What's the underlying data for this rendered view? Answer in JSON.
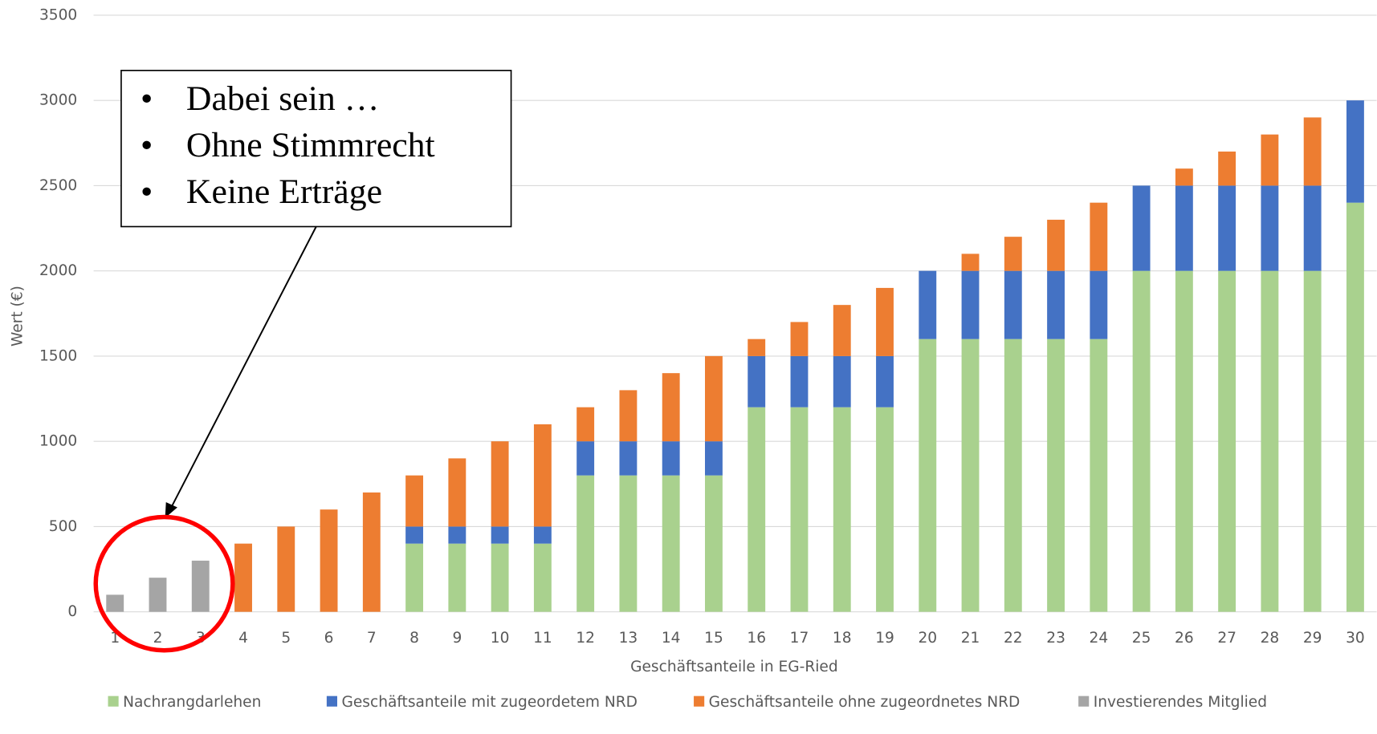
{
  "chart_data": {
    "type": "stacked_bar",
    "x_label": "Geschäftsanteile in EG-Ried",
    "y_label": "Wert (€)",
    "categories": [
      "1",
      "2",
      "3",
      "4",
      "5",
      "6",
      "7",
      "8",
      "9",
      "10",
      "11",
      "12",
      "13",
      "14",
      "15",
      "16",
      "17",
      "18",
      "19",
      "20",
      "21",
      "22",
      "23",
      "24",
      "25",
      "26",
      "27",
      "28",
      "29",
      "30"
    ],
    "series": [
      {
        "name": "Nachrangdarlehen",
        "color": "#a9d18e",
        "values": [
          0,
          0,
          0,
          0,
          0,
          0,
          0,
          400,
          400,
          400,
          400,
          800,
          800,
          800,
          800,
          1200,
          1200,
          1200,
          1200,
          1600,
          1600,
          1600,
          1600,
          1600,
          2000,
          2000,
          2000,
          2000,
          2000,
          2400
        ]
      },
      {
        "name": "Geschäftsanteile mit zugeordetem NRD",
        "color": "#4472c4",
        "values": [
          0,
          0,
          0,
          0,
          0,
          0,
          0,
          100,
          100,
          100,
          100,
          200,
          200,
          200,
          200,
          300,
          300,
          300,
          300,
          400,
          400,
          400,
          400,
          400,
          500,
          500,
          500,
          500,
          500,
          600
        ]
      },
      {
        "name": "Geschäftsanteile ohne zugeordnetes NRD",
        "color": "#ed7d31",
        "values": [
          0,
          0,
          0,
          400,
          500,
          600,
          700,
          300,
          400,
          500,
          600,
          200,
          300,
          400,
          500,
          100,
          200,
          300,
          400,
          0,
          100,
          200,
          300,
          400,
          0,
          100,
          200,
          300,
          400,
          0
        ]
      },
      {
        "name": "Investierendes Mitglied",
        "color": "#a5a5a5",
        "values": [
          100,
          200,
          300,
          0,
          0,
          0,
          0,
          0,
          0,
          0,
          0,
          0,
          0,
          0,
          0,
          0,
          0,
          0,
          0,
          0,
          0,
          0,
          0,
          0,
          0,
          0,
          0,
          0,
          0,
          0
        ]
      }
    ],
    "ylim": [
      0,
      3500
    ],
    "yticks": [
      0,
      500,
      1000,
      1500,
      2000,
      2500,
      3000,
      3500
    ],
    "grid": true,
    "legend": "bottom",
    "annotations": [
      "Dabei sein …",
      "Ohne Stimmrecht",
      "Keine Erträge"
    ]
  }
}
